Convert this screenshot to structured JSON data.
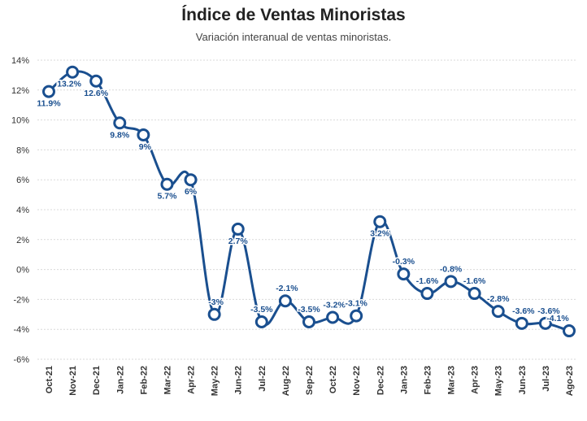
{
  "chart_data": {
    "type": "line",
    "title": "Índice de Ventas Minoristas",
    "subtitle": "Variación interanual de ventas minoristas.",
    "xlabel": "",
    "ylabel": "",
    "ylim": [
      -6,
      14
    ],
    "y_ticks": [
      "14%",
      "12%",
      "10%",
      "8%",
      "6%",
      "4%",
      "2%",
      "0%",
      "-2%",
      "-4%",
      "-6%"
    ],
    "grid": true,
    "legend": "none",
    "line_color": "#1a4f8f",
    "label_color": "#1a4f8f",
    "categories": [
      "Oct-21",
      "Nov-21",
      "Dec-21",
      "Jan-22",
      "Feb-22",
      "Mar-22",
      "Apr-22",
      "May-22",
      "Jun-22",
      "Jul-22",
      "Aug-22",
      "Sep-22",
      "Oct-22",
      "Nov-22",
      "Dec-22",
      "Jan-23",
      "Feb-23",
      "Mar-23",
      "Apr-23",
      "May-23",
      "Jun-23",
      "Jul-23",
      "Ago-23"
    ],
    "values": [
      11.9,
      13.2,
      12.6,
      9.8,
      9,
      5.7,
      6,
      -3,
      2.7,
      -3.5,
      -2.1,
      -3.5,
      -3.2,
      -3.1,
      3.2,
      -0.3,
      -1.6,
      -0.8,
      -1.6,
      -2.8,
      -3.6,
      -3.6,
      -4.1
    ],
    "data_labels": [
      "11.9%",
      "13.2%",
      "12.6%",
      "9.8%",
      "9%",
      "5.7%",
      "6%",
      "-3%",
      "2.7%",
      "-3.5%",
      "-2.1%",
      "-3.5%",
      "-3.2%",
      "-3.1%",
      "3.2%",
      "-0.3%",
      "-1.6%",
      "-0.8%",
      "-1.6%",
      "-2.8%",
      "-3.6%",
      "-3.6%",
      "-4.1%"
    ]
  }
}
